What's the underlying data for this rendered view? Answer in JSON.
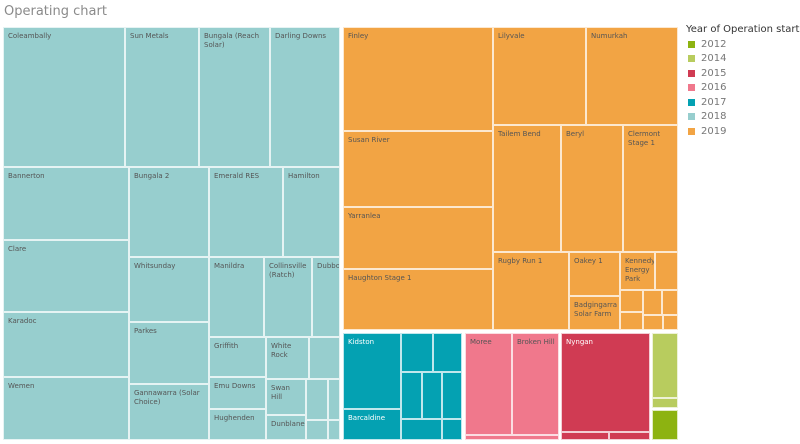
{
  "title": "Operating chart",
  "chart_data": {
    "type": "treemap",
    "title": "Operating chart",
    "legend": {
      "title": "Year of Operation start",
      "placement": "right",
      "entries": [
        {
          "year": "2012",
          "color": "#8db311"
        },
        {
          "year": "2014",
          "color": "#b8cc5e"
        },
        {
          "year": "2015",
          "color": "#d03b53"
        },
        {
          "year": "2016",
          "color": "#f0788c"
        },
        {
          "year": "2017",
          "color": "#04a1b2"
        },
        {
          "year": "2018",
          "color": "#97cece"
        },
        {
          "year": "2019",
          "color": "#f2a444"
        }
      ]
    },
    "items": [
      {
        "name": "Coleambally",
        "year": "2018"
      },
      {
        "name": "Sun Metals",
        "year": "2018"
      },
      {
        "name": "Bungala (Reach Solar)",
        "year": "2018"
      },
      {
        "name": "Darling Downs",
        "year": "2018"
      },
      {
        "name": "Bannerton",
        "year": "2018"
      },
      {
        "name": "Clare",
        "year": "2018"
      },
      {
        "name": "Karadoc",
        "year": "2018"
      },
      {
        "name": "Wemen",
        "year": "2018"
      },
      {
        "name": "Bungala 2",
        "year": "2018"
      },
      {
        "name": "Whitsunday",
        "year": "2018"
      },
      {
        "name": "Parkes",
        "year": "2018"
      },
      {
        "name": "Gannawarra (Solar Choice)",
        "year": "2018"
      },
      {
        "name": "Emerald RES",
        "year": "2018"
      },
      {
        "name": "Hamilton",
        "year": "2018"
      },
      {
        "name": "Manildra",
        "year": "2018"
      },
      {
        "name": "Collinsville (Ratch)",
        "year": "2018"
      },
      {
        "name": "Dubbo",
        "year": "2018"
      },
      {
        "name": "Griffith",
        "year": "2018"
      },
      {
        "name": "Emu Downs",
        "year": "2018"
      },
      {
        "name": "Hughenden",
        "year": "2018"
      },
      {
        "name": "White Rock",
        "year": "2018"
      },
      {
        "name": "",
        "year": "2018"
      },
      {
        "name": "Swan Hill",
        "year": "2018"
      },
      {
        "name": "Dunblane",
        "year": "2018"
      },
      {
        "name": "",
        "year": "2018"
      },
      {
        "name": "",
        "year": "2018"
      },
      {
        "name": "",
        "year": "2018"
      },
      {
        "name": "",
        "year": "2018"
      },
      {
        "name": "Finley",
        "year": "2019"
      },
      {
        "name": "Susan River",
        "year": "2019"
      },
      {
        "name": "Yarranlea",
        "year": "2019"
      },
      {
        "name": "Haughton Stage 1",
        "year": "2019"
      },
      {
        "name": "Lilyvale",
        "year": "2019"
      },
      {
        "name": "Numurkah",
        "year": "2019"
      },
      {
        "name": "Tailem Bend",
        "year": "2019"
      },
      {
        "name": "Beryl",
        "year": "2019"
      },
      {
        "name": "Clermont Stage 1",
        "year": "2019"
      },
      {
        "name": "Rugby Run 1",
        "year": "2019"
      },
      {
        "name": "Oakey 1",
        "year": "2019"
      },
      {
        "name": "Badgingarra Solar Farm",
        "year": "2019"
      },
      {
        "name": "Kennedy Energy Park",
        "year": "2019"
      },
      {
        "name": "",
        "year": "2019"
      },
      {
        "name": "",
        "year": "2019"
      },
      {
        "name": "",
        "year": "2019"
      },
      {
        "name": "",
        "year": "2019"
      },
      {
        "name": "",
        "year": "2019"
      },
      {
        "name": "",
        "year": "2019"
      },
      {
        "name": "",
        "year": "2019"
      },
      {
        "name": "Kidston",
        "year": "2017"
      },
      {
        "name": "Barcaldine",
        "year": "2017"
      },
      {
        "name": "",
        "year": "2017"
      },
      {
        "name": "",
        "year": "2017"
      },
      {
        "name": "",
        "year": "2017"
      },
      {
        "name": "",
        "year": "2017"
      },
      {
        "name": "",
        "year": "2017"
      },
      {
        "name": "",
        "year": "2017"
      },
      {
        "name": "",
        "year": "2017"
      },
      {
        "name": "Moree",
        "year": "2016"
      },
      {
        "name": "Broken Hill",
        "year": "2016"
      },
      {
        "name": "",
        "year": "2016"
      },
      {
        "name": "Nyngan",
        "year": "2015"
      },
      {
        "name": "",
        "year": "2015"
      },
      {
        "name": "",
        "year": "2015"
      },
      {
        "name": "",
        "year": "2014"
      },
      {
        "name": "",
        "year": "2014"
      },
      {
        "name": "",
        "year": "2012"
      }
    ]
  }
}
